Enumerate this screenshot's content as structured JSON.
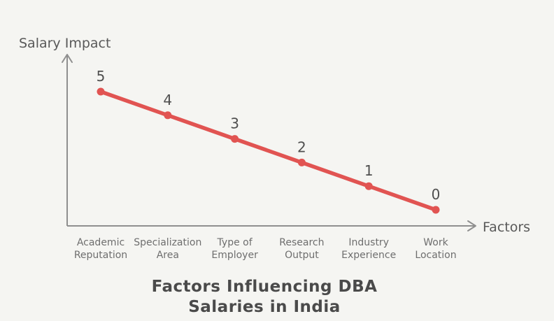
{
  "chart_data": {
    "type": "line",
    "title": "Factors Influencing DBA Salaries in India",
    "title_lines": [
      "Factors Influencing DBA",
      "Salaries in India"
    ],
    "ylabel": "Salary Impact",
    "xlabel": "Factors",
    "categories": [
      "Academic Reputation",
      "Specialization Area",
      "Type of Employer",
      "Research Output",
      "Industry Experience",
      "Work Location"
    ],
    "category_lines": [
      [
        "Academic",
        "Reputation"
      ],
      [
        "Specialization",
        "Area"
      ],
      [
        "Type of",
        "Employer"
      ],
      [
        "Research",
        "Output"
      ],
      [
        "Industry",
        "Experience"
      ],
      [
        "Work",
        "Location"
      ]
    ],
    "values": [
      5,
      4,
      3,
      2,
      1,
      0
    ],
    "point_labels": [
      "5",
      "4",
      "3",
      "2",
      "1",
      "0"
    ],
    "ylim": [
      0,
      5
    ],
    "grid": false,
    "legend": "none",
    "colors": {
      "background": "#f5f5f2",
      "line": "#e15452",
      "axis": "#8f8f8f",
      "axis_labels": "#595959",
      "category_labels": "#6e6e6e",
      "point_numbers": "#4f4f4f",
      "title": "#4a4a4a"
    }
  }
}
